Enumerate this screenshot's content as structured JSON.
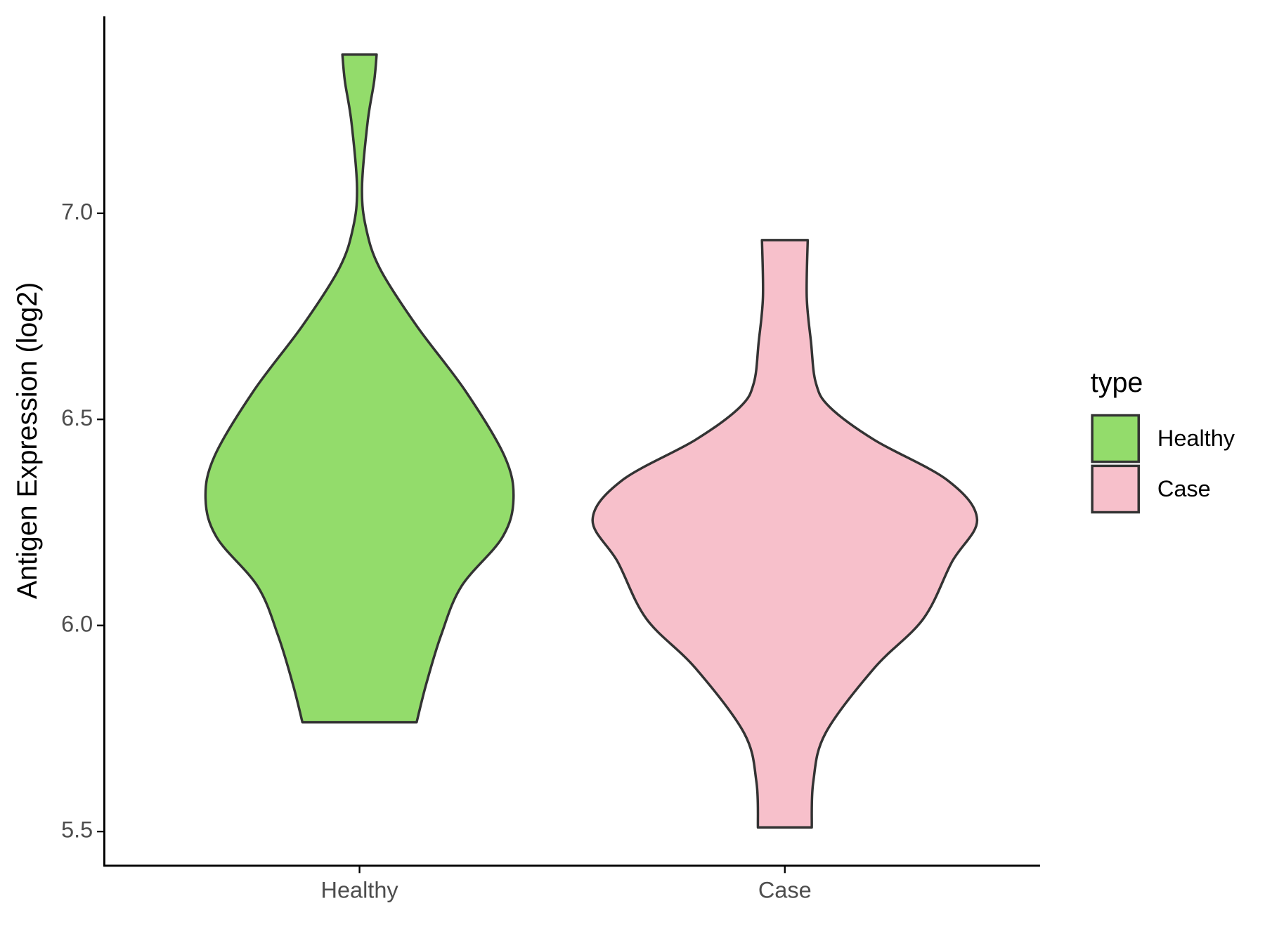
{
  "chart_data": {
    "type": "violin",
    "ylabel": "Antigen Expression (log2)",
    "categories": [
      "Healthy",
      "Case"
    ],
    "ylim": [
      5.417,
      7.478
    ],
    "yticks": [
      5.5,
      {
        "value": 6,
        "label": "6.0"
      },
      6.5,
      {
        "value": 7,
        "label": "7.0"
      }
    ],
    "legend_title": "type",
    "legend": "right",
    "series": [
      {
        "name": "Healthy",
        "color": "#93dc6b",
        "y": [
          7.385,
          7.32,
          7.221,
          7.063,
          6.964,
          6.866,
          6.727,
          6.569,
          6.411,
          6.308,
          6.213,
          6.095,
          5.976,
          5.858,
          5.765
        ],
        "density": [
          0.089,
          0.076,
          0.042,
          0.013,
          0.034,
          0.106,
          0.297,
          0.551,
          0.754,
          0.801,
          0.742,
          0.53,
          0.424,
          0.347,
          0.297
        ]
      },
      {
        "name": "Case",
        "color": "#f7c0cb",
        "y": [
          6.935,
          6.796,
          6.688,
          6.589,
          6.53,
          6.45,
          6.352,
          6.257,
          6.154,
          6.016,
          5.897,
          5.739,
          5.621,
          5.51
        ],
        "density": [
          0.119,
          0.114,
          0.136,
          0.161,
          0.233,
          0.466,
          0.847,
          1,
          0.869,
          0.72,
          0.466,
          0.212,
          0.148,
          0.14
        ]
      }
    ]
  }
}
